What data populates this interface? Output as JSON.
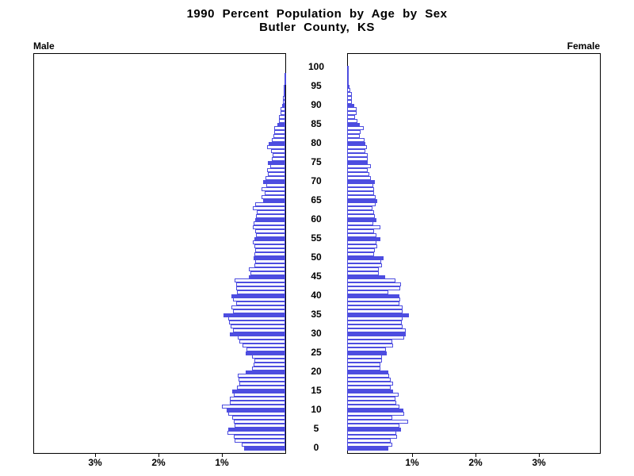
{
  "title": {
    "line1": "1990 Percent Population by Age by Sex",
    "line2": "Butler County, KS"
  },
  "panel_labels": {
    "male": "Male",
    "female": "Female"
  },
  "x_axis": {
    "left_tick_labels": [
      "3%",
      "2%",
      "1%"
    ],
    "right_tick_labels": [
      "1%",
      "2%",
      "3%"
    ]
  },
  "age_axis": {
    "tick_labels": [
      "0",
      "5",
      "10",
      "15",
      "20",
      "25",
      "30",
      "35",
      "40",
      "45",
      "50",
      "55",
      "60",
      "65",
      "70",
      "75",
      "80",
      "85",
      "90",
      "95",
      "100"
    ]
  },
  "colors": {
    "bar_blue": "#4d4de0",
    "bar_fill_white": "#ffffff",
    "axis_black": "#000000"
  },
  "chart_data": {
    "type": "bar",
    "variant": "population_pyramid",
    "title": "1990 Percent Population by Age by Sex",
    "subtitle": "Butler County, KS",
    "x_unit": "percent of total population",
    "x_range_each_side": [
      0,
      4
    ],
    "x_ticks_percent": [
      1,
      2,
      3
    ],
    "age_min": 0,
    "age_max": 100,
    "highlight_rule": "ages that are multiples of 5 are drawn as solid blue bars; other ages are white bars with blue outline",
    "series": [
      {
        "name": "Male",
        "side": "left",
        "ages": "0-100 ascending",
        "values_percent": [
          0.65,
          0.69,
          0.8,
          0.81,
          0.91,
          0.9,
          0.8,
          0.81,
          0.84,
          0.9,
          0.92,
          1.0,
          0.87,
          0.88,
          0.81,
          0.84,
          0.76,
          0.73,
          0.74,
          0.75,
          0.63,
          0.52,
          0.5,
          0.49,
          0.52,
          0.63,
          0.61,
          0.67,
          0.73,
          0.75,
          0.88,
          0.82,
          0.86,
          0.89,
          0.9,
          0.97,
          0.83,
          0.85,
          0.78,
          0.83,
          0.85,
          0.76,
          0.78,
          0.77,
          0.8,
          0.57,
          0.55,
          0.58,
          0.49,
          0.48,
          0.5,
          0.49,
          0.48,
          0.49,
          0.51,
          0.49,
          0.46,
          0.48,
          0.51,
          0.5,
          0.47,
          0.46,
          0.45,
          0.51,
          0.47,
          0.35,
          0.37,
          0.33,
          0.37,
          0.3,
          0.35,
          0.31,
          0.27,
          0.29,
          0.24,
          0.27,
          0.21,
          0.2,
          0.22,
          0.29,
          0.26,
          0.21,
          0.19,
          0.17,
          0.17,
          0.12,
          0.1,
          0.1,
          0.08,
          0.08,
          0.05,
          0.04,
          0.04,
          0.02,
          0.02,
          0.02,
          0.01,
          0.01,
          0.01,
          0.0,
          0.0
        ]
      },
      {
        "name": "Female",
        "side": "right",
        "ages": "0-100 ascending",
        "values_percent": [
          0.65,
          0.71,
          0.69,
          0.79,
          0.77,
          0.85,
          0.82,
          0.96,
          0.71,
          0.9,
          0.89,
          0.82,
          0.77,
          0.76,
          0.81,
          0.73,
          0.69,
          0.72,
          0.69,
          0.66,
          0.65,
          0.52,
          0.52,
          0.55,
          0.55,
          0.63,
          0.61,
          0.72,
          0.71,
          0.9,
          0.92,
          0.92,
          0.88,
          0.86,
          0.88,
          0.97,
          0.88,
          0.87,
          0.83,
          0.84,
          0.83,
          0.65,
          0.84,
          0.85,
          0.76,
          0.6,
          0.5,
          0.5,
          0.55,
          0.54,
          0.57,
          0.43,
          0.44,
          0.47,
          0.46,
          0.52,
          0.46,
          0.42,
          0.52,
          0.41,
          0.46,
          0.44,
          0.43,
          0.4,
          0.45,
          0.48,
          0.45,
          0.43,
          0.42,
          0.41,
          0.44,
          0.38,
          0.35,
          0.33,
          0.38,
          0.33,
          0.33,
          0.33,
          0.29,
          0.31,
          0.29,
          0.27,
          0.2,
          0.21,
          0.26,
          0.2,
          0.16,
          0.13,
          0.15,
          0.15,
          0.11,
          0.08,
          0.08,
          0.08,
          0.05,
          0.04,
          0.02,
          0.02,
          0.01,
          0.01,
          0.01
        ]
      }
    ],
    "legend": "none",
    "grid": "off"
  }
}
